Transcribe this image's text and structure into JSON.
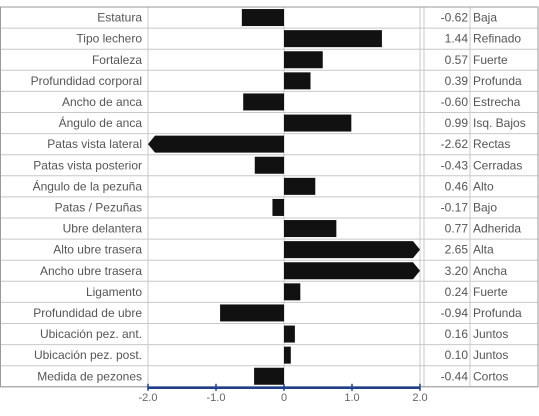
{
  "chart_data": {
    "type": "bar",
    "orientation": "horizontal",
    "xlim": [
      -2.0,
      2.0
    ],
    "ticks": [
      {
        "value": -2.0,
        "label": "-2.0"
      },
      {
        "value": -1.0,
        "label": "-1.0"
      },
      {
        "value": 0,
        "label": "0"
      },
      {
        "value": 1.0,
        "label": "1.0"
      },
      {
        "value": 2.0,
        "label": "2.0"
      }
    ],
    "grid": true,
    "bar_color": "#111111",
    "axis_color": "#1f3f8f",
    "rows": [
      {
        "trait": "Estatura",
        "value": -0.62,
        "value_label": "-0.62",
        "descriptor": "Baja"
      },
      {
        "trait": "Tipo lechero",
        "value": 1.44,
        "value_label": "1.44",
        "descriptor": "Refinado"
      },
      {
        "trait": "Fortaleza",
        "value": 0.57,
        "value_label": "0.57",
        "descriptor": "Fuerte"
      },
      {
        "trait": "Profundidad corporal",
        "value": 0.39,
        "value_label": "0.39",
        "descriptor": "Profunda"
      },
      {
        "trait": "Ancho de anca",
        "value": -0.6,
        "value_label": "-0.60",
        "descriptor": "Estrecha"
      },
      {
        "trait": "Ángulo de anca",
        "value": 0.99,
        "value_label": "0.99",
        "descriptor": "Isq. Bajos"
      },
      {
        "trait": "Patas vista lateral",
        "value": -2.62,
        "value_label": "-2.62",
        "descriptor": "Rectas"
      },
      {
        "trait": "Patas vista posterior",
        "value": -0.43,
        "value_label": "-0.43",
        "descriptor": "Cerradas"
      },
      {
        "trait": "Ángulo de la pezuña",
        "value": 0.46,
        "value_label": "0.46",
        "descriptor": "Alto"
      },
      {
        "trait": "Patas / Pezuñas",
        "value": -0.17,
        "value_label": "-0.17",
        "descriptor": "Bajo"
      },
      {
        "trait": "Ubre delantera",
        "value": 0.77,
        "value_label": "0.77",
        "descriptor": "Adherida"
      },
      {
        "trait": "Alto ubre trasera",
        "value": 2.65,
        "value_label": "2.65",
        "descriptor": "Alta"
      },
      {
        "trait": "Ancho ubre trasera",
        "value": 3.2,
        "value_label": "3.20",
        "descriptor": "Ancha"
      },
      {
        "trait": "Ligamento",
        "value": 0.24,
        "value_label": "0.24",
        "descriptor": "Fuerte"
      },
      {
        "trait": "Profundidad de ubre",
        "value": -0.94,
        "value_label": "-0.94",
        "descriptor": "Profunda"
      },
      {
        "trait": "Ubicación pez. ant.",
        "value": 0.16,
        "value_label": "0.16",
        "descriptor": "Juntos"
      },
      {
        "trait": "Ubicación pez. post.",
        "value": 0.1,
        "value_label": "0.10",
        "descriptor": "Juntos"
      },
      {
        "trait": "Medida de pezones",
        "value": -0.44,
        "value_label": "-0.44",
        "descriptor": "Cortos"
      }
    ]
  }
}
